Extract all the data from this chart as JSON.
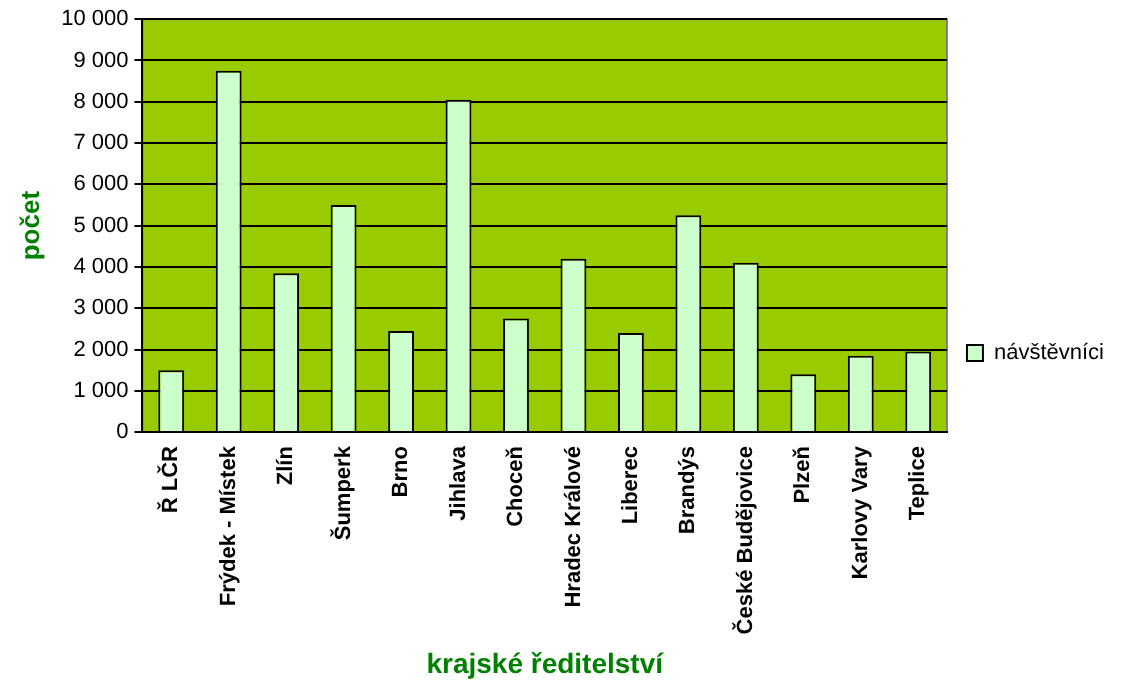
{
  "chart_data": {
    "type": "bar",
    "xlabel": "krajské ředitelství",
    "ylabel": "počet",
    "categories": [
      "Ř LČR",
      "Frýdek - Místek",
      "Zlín",
      "Šumperk",
      "Brno",
      "Jihlava",
      "Choceň",
      "Hradec Králové",
      "Liberec",
      "Brandýs",
      "České Budějovice",
      "Plzeň",
      "Karlovy Vary",
      "Teplice"
    ],
    "series": [
      {
        "name": "návštěvníci",
        "color": "#ccffcc",
        "values": [
          1500,
          8750,
          3850,
          5500,
          2450,
          8050,
          2750,
          4200,
          2400,
          5250,
          4100,
          1400,
          1850,
          1950
        ]
      }
    ],
    "ylim": [
      0,
      10000
    ],
    "yticks": [
      0,
      {
        "value": 1000,
        "label": "1 000"
      },
      {
        "value": 2000,
        "label": "2 000"
      },
      {
        "value": 3000,
        "label": "3 000"
      },
      {
        "value": 4000,
        "label": "4 000"
      },
      {
        "value": 5000,
        "label": "5 000"
      },
      {
        "value": 6000,
        "label": "6 000"
      },
      {
        "value": 7000,
        "label": "7 000"
      },
      {
        "value": 8000,
        "label": "8 000"
      },
      {
        "value": 9000,
        "label": "9 000"
      },
      {
        "value": 10000,
        "label": "10 000"
      }
    ],
    "grid": "y",
    "legend": "right"
  }
}
